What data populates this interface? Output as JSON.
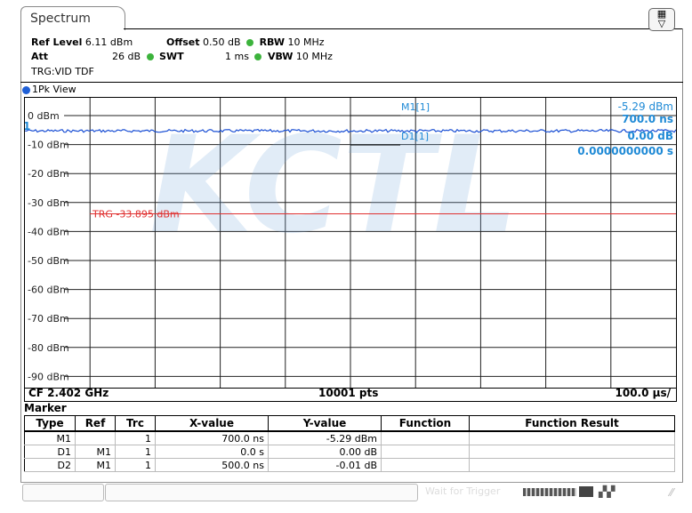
{
  "tab": {
    "label": "Spectrum"
  },
  "settings": {
    "ref_level_label": "Ref Level",
    "ref_level_value": "6.11 dBm",
    "offset_label": "Offset",
    "offset_value": "0.50 dB",
    "rbw_label": "RBW",
    "rbw_value": "10 MHz",
    "att_label": "Att",
    "att_value": "26 dB",
    "swt_label": "SWT",
    "swt_value": "1 ms",
    "vbw_label": "VBW",
    "vbw_value": "10 MHz",
    "trigger": "TRG:VID TDF"
  },
  "view": {
    "label": "1Pk View"
  },
  "plot": {
    "y_ticks": [
      "0 dBm",
      "-10 dBm",
      "-20 dBm",
      "-30 dBm",
      "-40 dBm",
      "-50 dBm",
      "-60 dBm",
      "-70 dBm",
      "-80 dBm",
      "-90 dBm"
    ],
    "trigger_label": "TRG -33.895 dBm",
    "trigger_level_dbm": -33.895,
    "trace_level_dbm": -5.29,
    "m1_label": "M1[1]",
    "m1_value": "-5.29 dBm",
    "m1_time": "700.0 ns",
    "d1_label": "D1[1]",
    "d1_value": "0.00 dB",
    "d1_time": "0.0000000000 s",
    "ref_marker": "1",
    "watermark": "KCTL",
    "colors": {
      "trace": "#1a4fd4",
      "trigger": "#e03030",
      "marker_text": "#1f8ad6",
      "status_dot": "#3cb33c"
    }
  },
  "status": {
    "cf": "CF 2.402 GHz",
    "pts": "10001 pts",
    "span": "100.0 µs/"
  },
  "marker_table": {
    "title": "Marker",
    "headers": [
      "Type",
      "Ref",
      "Trc",
      "X-value",
      "Y-value",
      "Function",
      "Function Result"
    ],
    "rows": [
      [
        "M1",
        "",
        "1",
        "700.0 ns",
        "-5.29 dBm",
        "",
        ""
      ],
      [
        "D1",
        "M1",
        "1",
        "0.0 s",
        "0.00 dB",
        "",
        ""
      ],
      [
        "D2",
        "M1",
        "1",
        "500.0 ns",
        "-0.01 dB",
        "",
        ""
      ]
    ]
  },
  "bottom_bar": {
    "wait_text": "Wait for Trigger"
  }
}
